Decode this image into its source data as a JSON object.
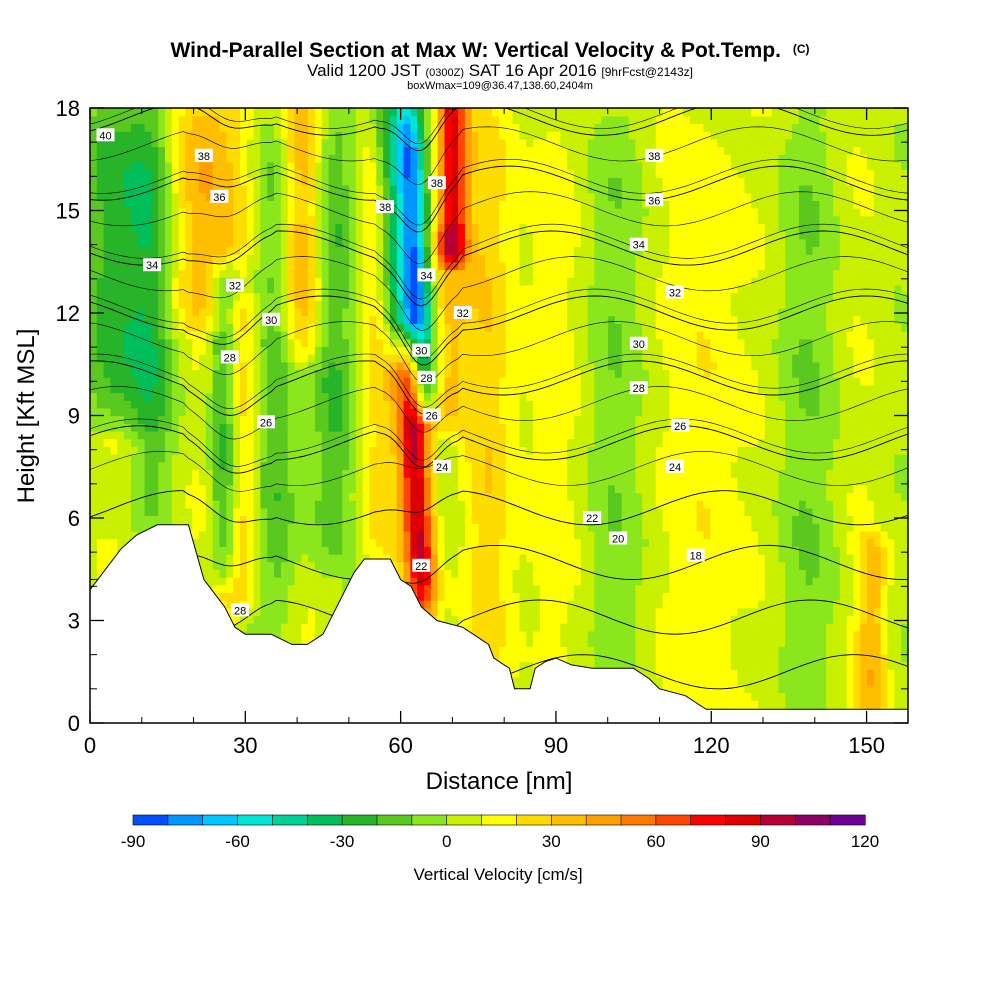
{
  "chart_data": {
    "type": "heatmap",
    "title": {
      "main": "Wind-Parallel Section at Max W: Vertical Velocity & Pot.Temp.",
      "copyright": "(C)",
      "line2a": "Valid 1200 JST",
      "line2b": "(0300Z)",
      "line2c": "SAT 16 Apr 2016",
      "line2d": "[9hrFcst@2143z]",
      "line3": "boxWmax=109@36.47,138.60,2404m"
    },
    "xlabel": "Distance [nm]",
    "ylabel": "Height [Kft MSL]",
    "xlim": [
      0,
      158
    ],
    "ylim": [
      0,
      18
    ],
    "x_ticks": [
      "0",
      "30",
      "60",
      "90",
      "120",
      "150"
    ],
    "x_tick_values": [
      0,
      30,
      60,
      90,
      120,
      150
    ],
    "y_ticks": [
      "0",
      "3",
      "6",
      "9",
      "12",
      "15",
      "18"
    ],
    "y_tick_values": [
      0,
      3,
      6,
      9,
      12,
      15,
      18
    ],
    "colorbar": {
      "label": "Vertical Velocity [cm/s]",
      "min": -90,
      "max": 120,
      "step": 10,
      "tick_labels": [
        "-90",
        "-60",
        "-30",
        "0",
        "30",
        "60",
        "90",
        "120"
      ],
      "tick_values": [
        -90,
        -60,
        -30,
        0,
        30,
        60,
        90,
        120
      ],
      "colors": [
        "#0000ff",
        "#0050ff",
        "#0096ff",
        "#00c8ff",
        "#00e6d2",
        "#00d296",
        "#00be5a",
        "#28b428",
        "#5ac81e",
        "#8ce61e",
        "#c8f000",
        "#ffff00",
        "#ffdc00",
        "#ffbe00",
        "#ffa000",
        "#ff7800",
        "#ff4600",
        "#ff0000",
        "#dc0000",
        "#b40032",
        "#8c0064",
        "#6e0096"
      ]
    },
    "terrain_kft": [
      [
        0,
        3.9
      ],
      [
        3,
        4.5
      ],
      [
        6,
        5.1
      ],
      [
        9,
        5.5
      ],
      [
        13,
        5.8
      ],
      [
        19,
        5.8
      ],
      [
        22,
        4.2
      ],
      [
        26,
        3.4
      ],
      [
        28,
        2.8
      ],
      [
        30,
        2.6
      ],
      [
        35,
        2.6
      ],
      [
        39,
        2.3
      ],
      [
        42,
        2.3
      ],
      [
        45,
        2.6
      ],
      [
        48,
        3.5
      ],
      [
        51,
        4.4
      ],
      [
        53,
        4.8
      ],
      [
        58,
        4.8
      ],
      [
        60,
        4.2
      ],
      [
        62,
        4.0
      ],
      [
        64,
        3.4
      ],
      [
        67,
        3.0
      ],
      [
        72,
        2.8
      ],
      [
        77,
        2.3
      ],
      [
        78,
        1.9
      ],
      [
        81,
        1.6
      ],
      [
        82,
        1.0
      ],
      [
        85,
        1.0
      ],
      [
        86,
        1.6
      ],
      [
        88,
        1.8
      ],
      [
        90,
        1.9
      ],
      [
        93,
        1.7
      ],
      [
        97,
        1.6
      ],
      [
        105,
        1.6
      ],
      [
        108,
        1.3
      ],
      [
        110,
        1.0
      ],
      [
        115,
        0.8
      ],
      [
        117,
        0.6
      ],
      [
        119,
        0.4
      ],
      [
        158,
        0.4
      ]
    ],
    "wind_features": [
      {
        "x": 5,
        "y0": 9,
        "y1": 18,
        "w": 7,
        "v": -35
      },
      {
        "x": 12,
        "y0": 6,
        "y1": 18,
        "w": 4,
        "v": -20
      },
      {
        "x": 21,
        "y0": 12,
        "y1": 18,
        "w": 6,
        "v": 25
      },
      {
        "x": 26,
        "y0": 4.5,
        "y1": 13,
        "w": 3,
        "v": -50
      },
      {
        "x": 29,
        "y0": 3.5,
        "y1": 12,
        "w": 5,
        "v": 38
      },
      {
        "x": 30,
        "y0": 12,
        "y1": 18,
        "w": 6,
        "v": 22
      },
      {
        "x": 35,
        "y0": 3,
        "y1": 18,
        "w": 5,
        "v": -30
      },
      {
        "x": 41,
        "y0": 11,
        "y1": 18,
        "w": 4,
        "v": 35
      },
      {
        "x": 47,
        "y0": 5,
        "y1": 18,
        "w": 5,
        "v": -25
      },
      {
        "x": 55,
        "y0": 5,
        "y1": 18,
        "w": 5,
        "v": 18
      },
      {
        "x": 60,
        "y0": 11,
        "y1": 18,
        "w": 3,
        "v": -40
      },
      {
        "x": 62,
        "y0": 3.5,
        "y1": 11,
        "w": 3,
        "v": 85
      },
      {
        "x": 64,
        "y0": 9.5,
        "y1": 18,
        "w": 3,
        "v": -85
      },
      {
        "x": 70,
        "y0": 14,
        "y1": 18,
        "w": 3,
        "v": 80
      },
      {
        "x": 69,
        "y0": 9,
        "y1": 14,
        "w": 4,
        "v": 30
      },
      {
        "x": 77,
        "y0": 1.5,
        "y1": 18,
        "w": 5,
        "v": 18
      },
      {
        "x": 88,
        "y0": 1.5,
        "y1": 18,
        "w": 5,
        "v": 12
      },
      {
        "x": 100,
        "y0": 1.5,
        "y1": 18,
        "w": 6,
        "v": -12
      },
      {
        "x": 120,
        "y0": 0.5,
        "y1": 18,
        "w": 6,
        "v": 15
      },
      {
        "x": 138,
        "y0": 0.5,
        "y1": 18,
        "w": 7,
        "v": -12
      },
      {
        "x": 151,
        "y0": 0.5,
        "y1": 5,
        "w": 3,
        "v": 30
      }
    ],
    "theta_levels": [
      18,
      20,
      22,
      24,
      26,
      28,
      30,
      32,
      34,
      36,
      38,
      40
    ],
    "contour_labels": [
      {
        "text": "40",
        "x": 3,
        "y": 17.2
      },
      {
        "text": "38",
        "x": 22,
        "y": 16.6
      },
      {
        "text": "36",
        "x": 25,
        "y": 15.4
      },
      {
        "text": "34",
        "x": 12,
        "y": 13.4
      },
      {
        "text": "32",
        "x": 28,
        "y": 12.8
      },
      {
        "text": "30",
        "x": 35,
        "y": 11.8
      },
      {
        "text": "28",
        "x": 27,
        "y": 10.7
      },
      {
        "text": "26",
        "x": 34,
        "y": 8.8
      },
      {
        "text": "28",
        "x": 29,
        "y": 3.3
      },
      {
        "text": "38",
        "x": 57,
        "y": 15.1
      },
      {
        "text": "38",
        "x": 67,
        "y": 15.8
      },
      {
        "text": "34",
        "x": 65,
        "y": 13.1
      },
      {
        "text": "32",
        "x": 72,
        "y": 12.0
      },
      {
        "text": "30",
        "x": 64,
        "y": 10.9
      },
      {
        "text": "28",
        "x": 65,
        "y": 10.1
      },
      {
        "text": "26",
        "x": 66,
        "y": 9.0
      },
      {
        "text": "24",
        "x": 68,
        "y": 7.5
      },
      {
        "text": "22",
        "x": 64,
        "y": 4.6
      },
      {
        "text": "38",
        "x": 109,
        "y": 16.6
      },
      {
        "text": "36",
        "x": 109,
        "y": 15.3
      },
      {
        "text": "34",
        "x": 106,
        "y": 14.0
      },
      {
        "text": "32",
        "x": 113,
        "y": 12.6
      },
      {
        "text": "30",
        "x": 106,
        "y": 11.1
      },
      {
        "text": "28",
        "x": 106,
        "y": 9.8
      },
      {
        "text": "26",
        "x": 114,
        "y": 8.7
      },
      {
        "text": "24",
        "x": 113,
        "y": 7.5
      },
      {
        "text": "22",
        "x": 97,
        "y": 6.0
      },
      {
        "text": "20",
        "x": 102,
        "y": 5.4
      },
      {
        "text": "18",
        "x": 117,
        "y": 4.9
      }
    ]
  }
}
